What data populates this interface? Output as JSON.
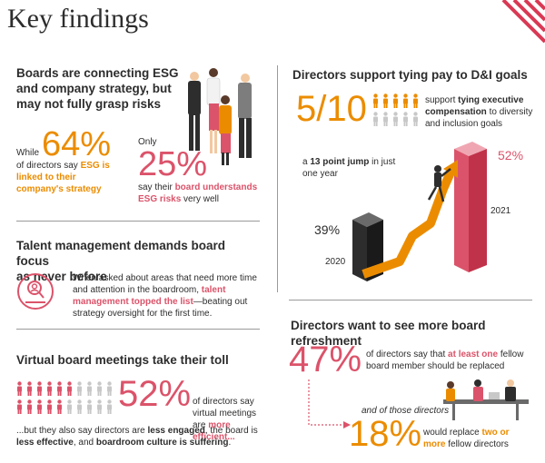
{
  "title": "Key findings",
  "esg": {
    "heading_line1": "Boards are connecting ESG",
    "heading_line2": "and company strategy, but",
    "heading_line3": "may not fully grasp risks",
    "while": "While",
    "stat1": "64%",
    "text1_pre": "of directors say",
    "text1_bold": "ESG is linked to their company's strategy",
    "only": "Only",
    "stat2": "25%",
    "text2_pre": "say their",
    "text2_bold": "board understands ESG risks",
    "text2_post": "very well"
  },
  "talent": {
    "heading_line1": "Talent management demands board focus",
    "heading_line2": "as never before",
    "text_pre": "When asked about areas that need more time and attention in the boardroom,",
    "text_bold": "talent management topped the list",
    "text_post": "—beating out strategy oversight for the first time."
  },
  "virtual": {
    "heading": "Virtual board meetings take their toll",
    "stat": "52%",
    "text_pre": "of directors say virtual meetings are",
    "text_bold": "more efficient...",
    "text2_a": "...but they also say directors are",
    "text2_b": "less engaged",
    "text2_c": ", the board is",
    "text2_d": "less effective",
    "text2_e": ", and",
    "text2_f": "boardroom culture is suffering",
    "text2_g": "."
  },
  "pay": {
    "heading": "Directors support tying pay to D&I goals",
    "stat": "5/10",
    "text_pre": "support",
    "text_bold": "tying executive compensation",
    "text_post": "to diversity and inclusion goals",
    "jump_pre": "a",
    "jump_bold": "13 point jump",
    "jump_post": "in just one year",
    "val_2021": "52%",
    "label_2021": "2021",
    "val_2020": "39%",
    "label_2020": "2020"
  },
  "refresh": {
    "heading": "Directors want to see more board refreshment",
    "stat1": "47%",
    "text1_pre": "of directors say that",
    "text1_bold": "at least one",
    "text1_post": "fellow board member should be replaced",
    "sub": "and of those directors",
    "stat2": "18%",
    "text2_pre": "would replace",
    "text2_bold": "two or more",
    "text2_post": "fellow directors"
  },
  "colors": {
    "orange": "#eb8c00",
    "pink": "#db536a",
    "dark": "#2d2d2d"
  }
}
